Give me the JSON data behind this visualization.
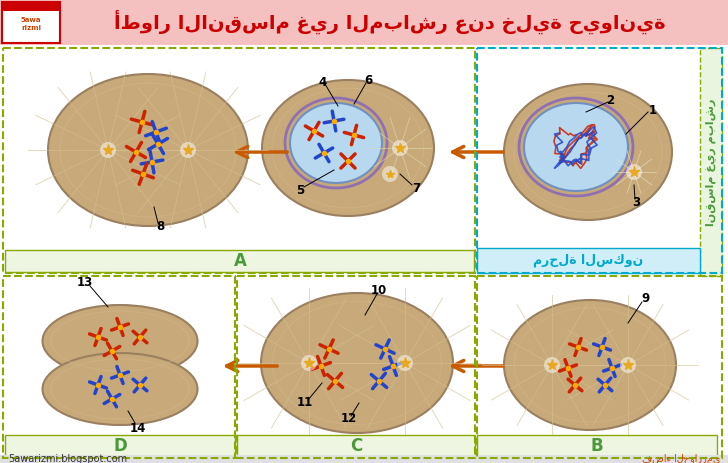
{
  "title": "أطوار الانقسام غير المباشر عند خلية حيوانية",
  "title_color": "#cc0000",
  "header_color": "#f5c0c0",
  "main_bg": "#ffffff",
  "label_sukoon": "مرحلة السكون",
  "label_inqisam": "انقسام غير مباشر",
  "footer_left": "5awarizmi.blogspot.com",
  "footer_right": "فضاء الخوارزمي",
  "arrow_color": "#c85a00",
  "green_border": "#88aa00",
  "blue_border": "#00aacc"
}
